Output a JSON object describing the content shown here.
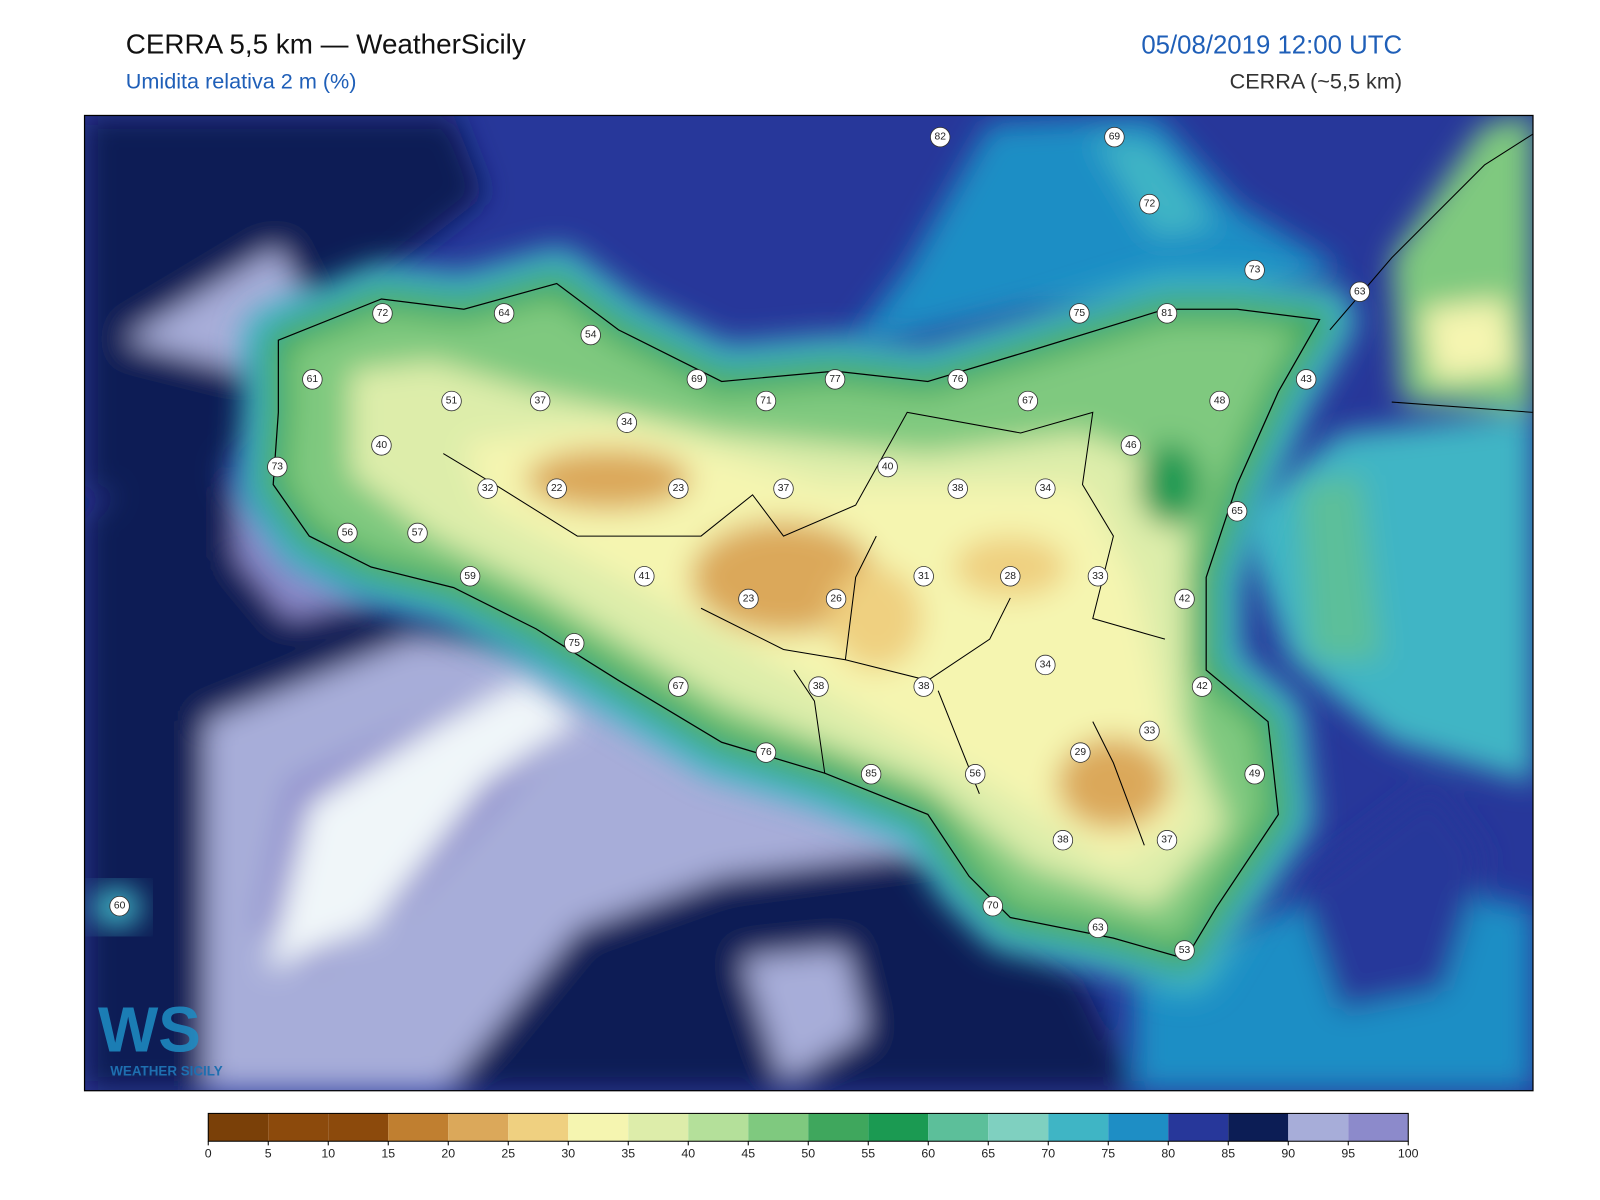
{
  "header": {
    "title": "CERRA 5,5 km — WeatherSicily",
    "subtitle": "Umidita relativa 2 m (%)",
    "datetime": "05/08/2019 12:00 UTC",
    "model": "CERRA (~5,5 km)"
  },
  "stations": [
    82,
    69,
    72,
    73,
    63,
    72,
    64,
    54,
    75,
    81,
    61,
    69,
    77,
    76,
    43,
    51,
    37,
    71,
    67,
    48,
    34,
    40,
    46,
    73,
    40,
    32,
    22,
    23,
    37,
    38,
    34,
    65,
    56,
    57,
    59,
    41,
    31,
    28,
    33,
    23,
    26,
    42,
    75,
    34,
    67,
    38,
    38,
    42,
    33,
    29,
    76,
    85,
    56,
    49,
    38,
    37,
    60,
    70,
    63,
    53
  ],
  "colorbar": {
    "ticks": [
      0,
      5,
      10,
      15,
      20,
      25,
      30,
      35,
      40,
      45,
      50,
      55,
      60,
      65,
      70,
      75,
      80,
      85,
      90,
      95,
      100
    ],
    "colors": [
      "#7a4008",
      "#8c4a0c",
      "#8c4a0c",
      "#c07f30",
      "#dba85a",
      "#efd080",
      "#f5f5b0",
      "#ddedaa",
      "#b4e09a",
      "#7fc97f",
      "#3fa75d",
      "#1b9a52",
      "#5cbf9a",
      "#7fd0c0",
      "#3fb5c5",
      "#1e8ec5",
      "#27379a",
      "#0c1d55",
      "#a7add9",
      "#8c8acb"
    ]
  },
  "logo": {
    "mark": "WS",
    "text": "WEATHER SICILY"
  }
}
